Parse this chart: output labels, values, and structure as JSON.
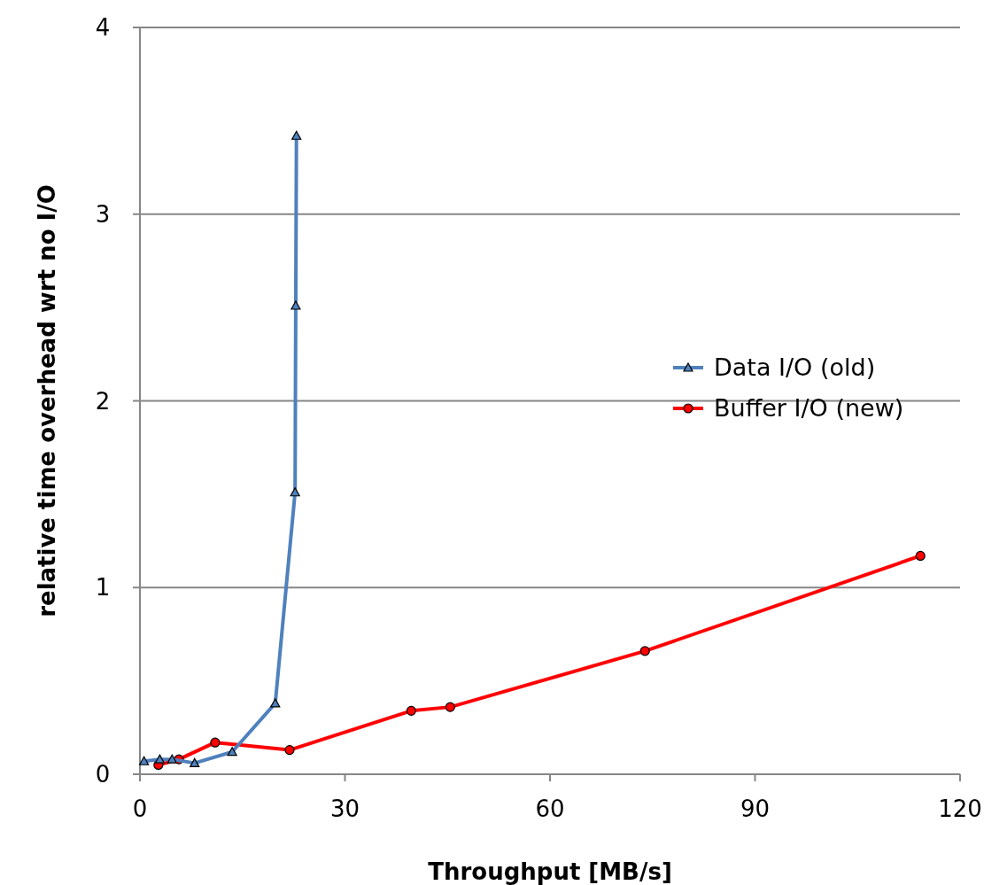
{
  "chart_data": {
    "type": "line",
    "xlabel": "Throughput [MB/s]",
    "ylabel": "relative time overhead wrt no I/O",
    "xlim": [
      0,
      120
    ],
    "xticks": [
      0,
      30,
      60,
      90,
      120
    ],
    "ylim": [
      0,
      4
    ],
    "yticks": [
      0,
      1,
      2,
      3,
      4
    ],
    "grid": "y",
    "legend": "right",
    "series": [
      {
        "name": "Data I/O (old)",
        "color": "#4f81bd",
        "marker": "triangle",
        "x": [
          0.6,
          2.9,
          4.7,
          8.0,
          13.5,
          19.8,
          22.7,
          22.8,
          22.9
        ],
        "values": [
          0.07,
          0.08,
          0.08,
          0.06,
          0.12,
          0.38,
          1.51,
          2.51,
          3.42
        ]
      },
      {
        "name": "Buffer I/O (new)",
        "color": "#ff0000",
        "marker": "circle",
        "x": [
          2.7,
          5.7,
          11.0,
          21.9,
          39.7,
          45.4,
          73.9,
          114.2
        ],
        "values": [
          0.05,
          0.08,
          0.17,
          0.13,
          0.34,
          0.36,
          0.66,
          1.17
        ]
      }
    ]
  }
}
